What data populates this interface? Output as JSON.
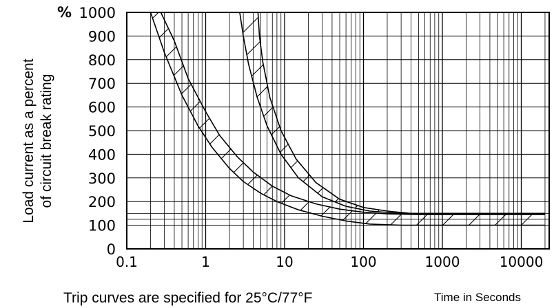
{
  "chart_data": {
    "type": "line",
    "x_scale": "log",
    "xlim": [
      0.1,
      20000
    ],
    "ylim": [
      0,
      1000
    ],
    "grid": true,
    "ylabel_line1": "Load current as a percent",
    "ylabel_line2": "of circuit break rating",
    "unit_label": "%",
    "xlabel": "Time in Seconds",
    "note": "Trip curves are specified for 25°C/77°F",
    "x_tick_labels": [
      "0.1",
      "1",
      "10",
      "100",
      "1000",
      "10000"
    ],
    "x_tick_values": [
      0.1,
      1,
      10,
      100,
      1000,
      10000
    ],
    "y_tick_labels": [
      "0",
      "100",
      "200",
      "300",
      "400",
      "500",
      "600",
      "700",
      "800",
      "900",
      "1000"
    ],
    "y_tick_values": [
      0,
      100,
      200,
      300,
      400,
      500,
      600,
      700,
      800,
      900,
      1000
    ],
    "series": [
      {
        "x": [
          0.2,
          0.3,
          0.5,
          0.8,
          1.2,
          2,
          3,
          5,
          8,
          15,
          30,
          60,
          120,
          300,
          1000,
          20000
        ],
        "y": [
          1000,
          830,
          650,
          520,
          430,
          340,
          285,
          235,
          200,
          165,
          138,
          118,
          105,
          100,
          100,
          100
        ]
      },
      {
        "x": [
          0.27,
          0.4,
          0.6,
          1,
          1.5,
          2.5,
          4,
          7,
          12,
          25,
          50,
          100,
          200,
          500,
          20000
        ],
        "y": [
          1000,
          880,
          720,
          580,
          480,
          390,
          325,
          265,
          225,
          190,
          168,
          155,
          148,
          145,
          145
        ]
      },
      {
        "x": [
          2.7,
          3,
          3.5,
          4.5,
          6,
          9,
          15,
          30,
          60,
          120,
          300,
          20000
        ],
        "y": [
          1000,
          900,
          780,
          640,
          520,
          400,
          300,
          220,
          180,
          160,
          150,
          150
        ]
      },
      {
        "x": [
          4.6,
          4.8,
          5.3,
          6.5,
          9,
          14,
          25,
          50,
          100,
          200,
          400,
          20000
        ],
        "y": [
          1000,
          900,
          790,
          640,
          500,
          380,
          280,
          210,
          175,
          160,
          150,
          150
        ]
      }
    ]
  }
}
